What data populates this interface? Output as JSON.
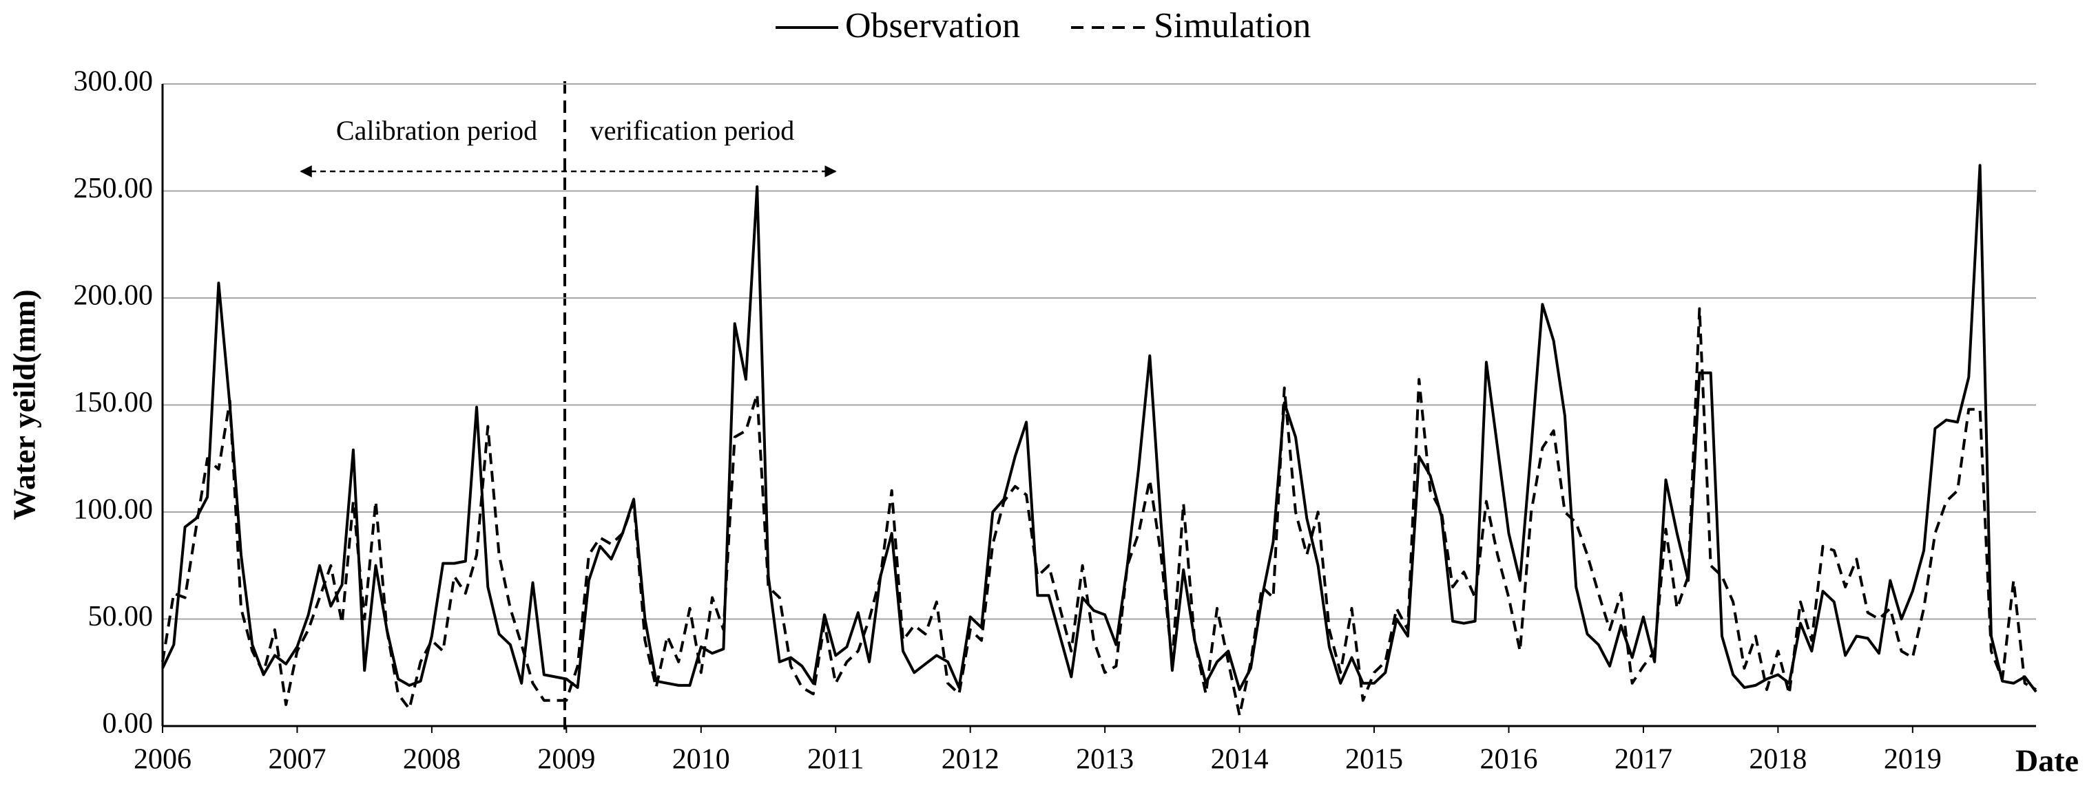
{
  "chart_data": {
    "type": "line",
    "y_label": "Water yeild(mm)",
    "x_label": "Date",
    "annotations": [
      "Calibration period",
      "verification period"
    ],
    "categories": [
      "2006",
      null,
      null,
      null,
      null,
      null,
      null,
      null,
      null,
      null,
      null,
      null,
      "2007",
      null,
      null,
      null,
      null,
      null,
      null,
      null,
      null,
      null,
      null,
      null,
      "2008",
      null,
      null,
      null,
      null,
      null,
      null,
      null,
      null,
      null,
      null,
      null,
      "2009",
      null,
      null,
      null,
      null,
      null,
      null,
      null,
      null,
      null,
      null,
      null,
      "2010",
      null,
      null,
      null,
      null,
      null,
      null,
      null,
      null,
      null,
      null,
      null,
      "2011",
      null,
      null,
      null,
      null,
      null,
      null,
      null,
      null,
      null,
      null,
      null,
      "2012",
      null,
      null,
      null,
      null,
      null,
      null,
      null,
      null,
      null,
      null,
      null,
      "2013",
      null,
      null,
      null,
      null,
      null,
      null,
      null,
      null,
      null,
      null,
      null,
      "2014",
      null,
      null,
      null,
      null,
      null,
      null,
      null,
      null,
      null,
      null,
      null,
      "2015",
      null,
      null,
      null,
      null,
      null,
      null,
      null,
      null,
      null,
      null,
      null,
      "2016",
      null,
      null,
      null,
      null,
      null,
      null,
      null,
      null,
      null,
      null,
      null,
      "2017",
      null,
      null,
      null,
      null,
      null,
      null,
      null,
      null,
      null,
      null,
      null,
      "2018",
      null,
      null,
      null,
      null,
      null,
      null,
      null,
      null,
      null,
      null,
      null,
      "2019",
      null,
      null,
      null,
      null,
      null,
      null,
      null,
      null,
      null,
      null,
      null
    ],
    "series": [
      {
        "name": "Observation",
        "color": "#000000",
        "style": "solid",
        "values": [
          27,
          38,
          93,
          97,
          107,
          207,
          150,
          80,
          38,
          24,
          33,
          29,
          37,
          52,
          75,
          56,
          66,
          129,
          26,
          75,
          45,
          22,
          19,
          21,
          42,
          76,
          76,
          77,
          149,
          65,
          43,
          38,
          20,
          67,
          24,
          23,
          22,
          18,
          68,
          84,
          78,
          90,
          106,
          50,
          21,
          20,
          19,
          19,
          37,
          34,
          36,
          188,
          162,
          252,
          70,
          30,
          32,
          28,
          20,
          52,
          33,
          37,
          53,
          30,
          70,
          90,
          35,
          25,
          29,
          33,
          30,
          18,
          51,
          46,
          100,
          106,
          126,
          142,
          61,
          61,
          42,
          23,
          60,
          54,
          52,
          38,
          75,
          120,
          173,
          95,
          26,
          73,
          40,
          20,
          30,
          35,
          17,
          27,
          60,
          86,
          151,
          135,
          97,
          75,
          37,
          20,
          32,
          20,
          20,
          25,
          50,
          42,
          126,
          117,
          98,
          49,
          48,
          49,
          170,
          130,
          90,
          68,
          130,
          197,
          180,
          145,
          65,
          43,
          38,
          28,
          47,
          32,
          51,
          30,
          115,
          90,
          68,
          165,
          165,
          42,
          24,
          18,
          19,
          22,
          24,
          20,
          48,
          35,
          63,
          58,
          33,
          42,
          41,
          34,
          68,
          50,
          63,
          82,
          139,
          143,
          142,
          163,
          262,
          42,
          21,
          20,
          23,
          16
        ]
      },
      {
        "name": "Simulation",
        "color": "#000000",
        "style": "dashed",
        "values": [
          30,
          62,
          60,
          93,
          125,
          120,
          152,
          55,
          35,
          25,
          45,
          10,
          35,
          45,
          60,
          75,
          48,
          105,
          50,
          105,
          45,
          15,
          8,
          30,
          40,
          35,
          70,
          62,
          80,
          140,
          80,
          55,
          38,
          20,
          12,
          12,
          12,
          28,
          80,
          88,
          85,
          90,
          105,
          40,
          18,
          42,
          30,
          55,
          25,
          60,
          45,
          135,
          138,
          155,
          65,
          60,
          28,
          18,
          15,
          48,
          20,
          30,
          35,
          50,
          70,
          110,
          40,
          47,
          43,
          58,
          20,
          15,
          45,
          40,
          85,
          105,
          112,
          108,
          70,
          75,
          55,
          35,
          75,
          40,
          25,
          28,
          75,
          90,
          115,
          80,
          30,
          104,
          40,
          15,
          55,
          30,
          5,
          30,
          65,
          60,
          158,
          100,
          80,
          100,
          45,
          25,
          55,
          12,
          25,
          30,
          55,
          45,
          162,
          110,
          100,
          65,
          72,
          60,
          105,
          80,
          60,
          35,
          100,
          130,
          138,
          100,
          95,
          80,
          62,
          45,
          62,
          20,
          28,
          35,
          92,
          55,
          70,
          195,
          75,
          70,
          58,
          27,
          42,
          17,
          35,
          15,
          58,
          40,
          84,
          82,
          65,
          78,
          53,
          50,
          55,
          35,
          32,
          55,
          90,
          105,
          110,
          148,
          148,
          35,
          22,
          68,
          20,
          17
        ]
      }
    ],
    "ylim": [
      0,
      300
    ],
    "yticks": [
      {
        "value": 0,
        "label": "0.00"
      },
      {
        "value": 50,
        "label": "50.00"
      },
      {
        "value": 100,
        "label": "100.00"
      },
      {
        "value": 150,
        "label": "150.00"
      },
      {
        "value": 200,
        "label": "200.00"
      },
      {
        "value": 250,
        "label": "250.00"
      },
      {
        "value": 300,
        "label": "300.00"
      }
    ],
    "grid": true,
    "legend": "top"
  }
}
